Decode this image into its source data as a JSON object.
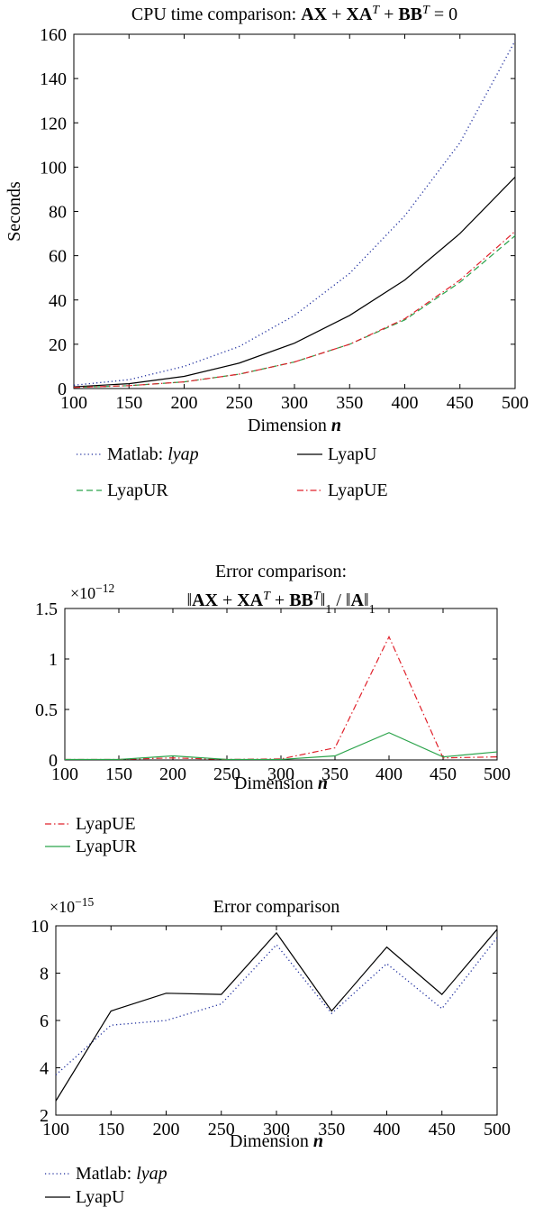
{
  "chart_data": [
    {
      "type": "line",
      "title": "CPU time comparison: AX + XA^T + BB^T = 0",
      "xlabel": "Dimension n",
      "ylabel": "Seconds",
      "xlim": [
        100,
        500
      ],
      "ylim": [
        0,
        160
      ],
      "xticks": [
        100,
        150,
        200,
        250,
        300,
        350,
        400,
        450,
        500
      ],
      "yticks": [
        0,
        20,
        40,
        60,
        80,
        100,
        120,
        140,
        160
      ],
      "grid": false,
      "legend_position": "below",
      "x": [
        100,
        150,
        200,
        250,
        300,
        350,
        400,
        450,
        500
      ],
      "series": [
        {
          "name": "Matlab: lyap",
          "color": "#1a2a9c",
          "style": "dotted",
          "values": [
            1.5,
            4,
            10,
            19,
            33,
            52,
            78,
            111,
            157
          ]
        },
        {
          "name": "LyapU",
          "color": "#000000",
          "style": "solid",
          "values": [
            0.8,
            2.2,
            5.5,
            11.5,
            20.5,
            33,
            49,
            70,
            95.5
          ]
        },
        {
          "name": "LyapUR",
          "color": "#2aa34a",
          "style": "dashed",
          "values": [
            0.5,
            1.3,
            3,
            6.5,
            12,
            20,
            31,
            48,
            69
          ]
        },
        {
          "name": "LyapUE",
          "color": "#e0202a",
          "style": "dashdot",
          "values": [
            0.5,
            1.3,
            3,
            6.5,
            12,
            20,
            31.5,
            49,
            71
          ]
        }
      ]
    },
    {
      "type": "line",
      "title_line1": "Error comparison:",
      "title_line2": "||AX + XA^T + BB^T||_1 / ||A||_1",
      "exponent_label": "×10^-12",
      "xlabel": "Dimension n",
      "ylabel": "",
      "xlim": [
        100,
        500
      ],
      "ylim": [
        0,
        1.5
      ],
      "xticks": [
        100,
        150,
        200,
        250,
        300,
        350,
        400,
        450,
        500
      ],
      "yticks": [
        0,
        0.5,
        1,
        1.5
      ],
      "grid": false,
      "legend_position": "below",
      "x": [
        100,
        150,
        200,
        250,
        300,
        350,
        400,
        450,
        500
      ],
      "series": [
        {
          "name": "LyapUE",
          "color": "#e0202a",
          "style": "dashdot",
          "values": [
            0.005,
            0.005,
            0.02,
            0.005,
            0.01,
            0.12,
            1.22,
            0.02,
            0.03
          ]
        },
        {
          "name": "LyapUR",
          "color": "#2aa34a",
          "style": "solid",
          "values": [
            0.005,
            0.005,
            0.04,
            0.005,
            0.005,
            0.04,
            0.27,
            0.03,
            0.08
          ]
        }
      ]
    },
    {
      "type": "line",
      "title": "Error comparison",
      "exponent_label": "×10^-15",
      "xlabel": "Dimension n",
      "ylabel": "",
      "xlim": [
        100,
        500
      ],
      "ylim": [
        2,
        10
      ],
      "xticks": [
        100,
        150,
        200,
        250,
        300,
        350,
        400,
        450,
        500
      ],
      "yticks": [
        2,
        4,
        6,
        8,
        10
      ],
      "grid": false,
      "legend_position": "below",
      "x": [
        100,
        150,
        200,
        250,
        300,
        350,
        400,
        450,
        500
      ],
      "series": [
        {
          "name": "Matlab: lyap",
          "color": "#1a2a9c",
          "style": "dotted",
          "values": [
            3.7,
            5.8,
            6,
            6.7,
            9.2,
            6.3,
            8.4,
            6.5,
            9.5
          ]
        },
        {
          "name": "LyapU",
          "color": "#000000",
          "style": "solid",
          "values": [
            2.6,
            6.4,
            7.15,
            7.1,
            9.7,
            6.4,
            9.1,
            7.1,
            9.85
          ]
        }
      ]
    }
  ]
}
